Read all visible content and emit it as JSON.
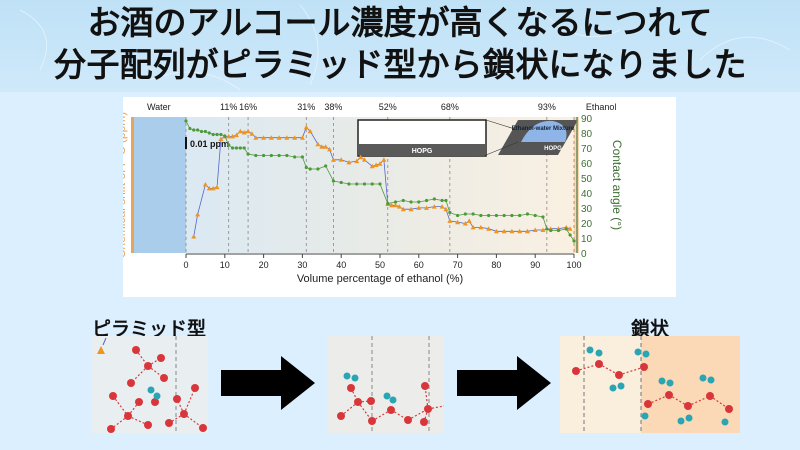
{
  "banner": {
    "line1": "お酒のアルコール濃度が高くなるにつれて",
    "line2": "分子配列がピラミッド型から鎖状になりました",
    "bg_color": "#c4e4f7"
  },
  "chart_data": {
    "type": "line",
    "title": "",
    "xlabel": "Volume percentage of ethanol (%)",
    "ylabel_left": "Chemical shift of P_C (ppm)",
    "ylabel_right": "Contact angle (°)",
    "x_ticks": [
      0,
      10,
      20,
      30,
      40,
      50,
      60,
      70,
      80,
      90,
      100
    ],
    "y_right_ticks": [
      0,
      10,
      20,
      30,
      40,
      50,
      60,
      70,
      80,
      90
    ],
    "xlim": [
      0,
      100
    ],
    "ylim_right": [
      0,
      90
    ],
    "scale_bar_label": "0.01 ppm",
    "region_labels": [
      {
        "x": -7,
        "label": "Water"
      },
      {
        "x": 11,
        "label": "11%"
      },
      {
        "x": 16,
        "label": "16%"
      },
      {
        "x": 31,
        "label": "31%"
      },
      {
        "x": 38,
        "label": "38%"
      },
      {
        "x": 52,
        "label": "52%"
      },
      {
        "x": 68,
        "label": "68%"
      },
      {
        "x": 93,
        "label": "93%"
      },
      {
        "x": 107,
        "label": "Ethanol"
      }
    ],
    "dashed_lines_x": [
      0,
      11,
      16,
      31,
      38,
      52,
      68,
      93,
      100
    ],
    "inset": {
      "left_label": "HOPG",
      "right_label": "HOPG",
      "droplet_label": "Ethanol-water Mixture"
    },
    "grid": false,
    "legend_position": "none",
    "series": [
      {
        "name": "Chemical shift of P_C",
        "color": "#f0941e",
        "marker": "triangle",
        "axis": "left",
        "x": [
          2,
          3,
          5,
          6,
          7,
          8,
          9,
          10,
          11,
          12,
          13,
          14,
          15,
          16,
          17,
          18,
          20,
          22,
          24,
          26,
          28,
          30,
          31,
          32,
          34,
          35,
          36,
          37,
          38,
          40,
          42,
          44,
          45,
          46,
          48,
          49,
          50,
          51,
          52,
          53,
          54,
          55,
          56,
          58,
          60,
          62,
          64,
          66,
          67,
          68,
          70,
          72,
          73,
          74,
          76,
          78,
          80,
          82,
          84,
          86,
          88,
          90,
          92,
          94,
          96,
          98,
          99
        ],
        "values": [
          5,
          22,
          45,
          42,
          42,
          43,
          80,
          82,
          82,
          82,
          83,
          86,
          85,
          86,
          84,
          81,
          81,
          81,
          81,
          81,
          81,
          81,
          89,
          86,
          76,
          74,
          74,
          72,
          64,
          64,
          62,
          63,
          66,
          64,
          59,
          60,
          61,
          64,
          30,
          29,
          29,
          28,
          26,
          26,
          27,
          27,
          28,
          28,
          26,
          17,
          16,
          15,
          17,
          12,
          12,
          11,
          9,
          9,
          9,
          9,
          9,
          10,
          10,
          11,
          11,
          12,
          11
        ],
        "y_units": "relative (px scale, 0.01 ppm bar)"
      },
      {
        "name": "Contact angle",
        "color": "#4d9a3a",
        "marker": "circle",
        "axis": "right",
        "x": [
          0,
          1,
          2,
          3,
          4,
          5,
          6,
          7,
          8,
          9,
          10,
          11,
          12,
          13,
          14,
          15,
          16,
          18,
          20,
          22,
          24,
          26,
          28,
          30,
          31,
          32,
          34,
          36,
          38,
          40,
          42,
          44,
          46,
          48,
          50,
          52,
          54,
          56,
          58,
          60,
          62,
          64,
          66,
          67,
          68,
          70,
          72,
          74,
          76,
          78,
          80,
          82,
          84,
          86,
          88,
          90,
          92,
          93,
          94,
          96,
          98,
          99,
          100
        ],
        "values": [
          88,
          83,
          82,
          82,
          81,
          81,
          80,
          79,
          79,
          79,
          78,
          72,
          70,
          70,
          70,
          70,
          66,
          65,
          65,
          65,
          65,
          65,
          64,
          64,
          57,
          56,
          56,
          58,
          48,
          47,
          46,
          46,
          46,
          46,
          46,
          33,
          34,
          35,
          34,
          34,
          35,
          36,
          35,
          35,
          27,
          25,
          26,
          26,
          25,
          25,
          25,
          25,
          25,
          25,
          26,
          25,
          24,
          16,
          15,
          15,
          16,
          12,
          8
        ]
      }
    ]
  },
  "bottom": {
    "left_label": "ピラミッド型",
    "right_label": "鎖状",
    "arrow1": "right-arrow",
    "arrow2": "right-arrow"
  }
}
